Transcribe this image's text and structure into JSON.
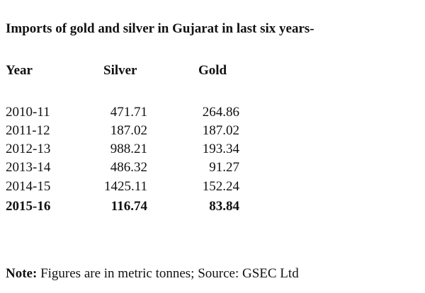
{
  "title": "Imports of gold and silver in Gujarat in last six years-",
  "table": {
    "header": [
      "Year",
      "Silver",
      "Gold"
    ],
    "rows": [
      [
        "2010-11",
        "471.71",
        "264.86"
      ],
      [
        "2011-12",
        "187.02",
        "187.02"
      ],
      [
        "2012-13",
        "988.21",
        "193.34"
      ],
      [
        "2013-14",
        "486.32",
        "91.27"
      ],
      [
        "2014-15",
        "1425.11",
        "152.24"
      ],
      [
        "2015-16",
        "116.74",
        "83.84"
      ]
    ]
  },
  "note": {
    "label": "Note:",
    "text": "Figures are in metric tonnes; Source: GSEC Ltd"
  }
}
